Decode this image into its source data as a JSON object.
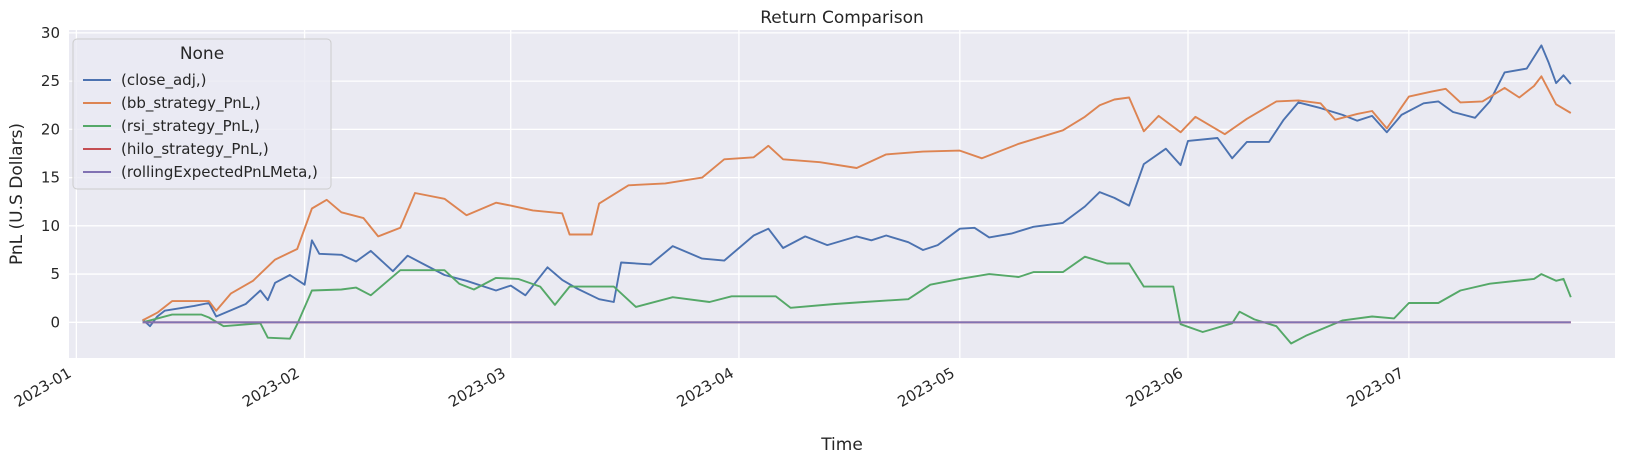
{
  "chart_data": {
    "type": "line",
    "title": "Return Comparison",
    "xlabel": "Time",
    "ylabel": "PnL (U.S Dollars)",
    "xlim": [
      "2022-12-31",
      "2023-07-29"
    ],
    "ylim": [
      -3.7,
      30.3
    ],
    "x_ticks": [
      "2023-01",
      "2023-02",
      "2023-03",
      "2023-04",
      "2023-05",
      "2023-06",
      "2023-07"
    ],
    "y_ticks": [
      0,
      5,
      10,
      15,
      20,
      25,
      30
    ],
    "grid": true,
    "legend": {
      "title": "None",
      "placement": "upper-left"
    },
    "series": [
      {
        "name": "(close_adj,)",
        "color": "#4c72b0",
        "points": [
          [
            "2023-01-10",
            0.3
          ],
          [
            "2023-01-11",
            -0.4
          ],
          [
            "2023-01-12",
            0.6
          ],
          [
            "2023-01-13",
            1.2
          ],
          [
            "2023-01-17",
            1.7
          ],
          [
            "2023-01-19",
            2.0
          ],
          [
            "2023-01-20",
            0.6
          ],
          [
            "2023-01-24",
            1.9
          ],
          [
            "2023-01-26",
            3.3
          ],
          [
            "2023-01-27",
            2.3
          ],
          [
            "2023-01-28",
            4.1
          ],
          [
            "2023-01-30",
            4.9
          ],
          [
            "2023-02-01",
            3.9
          ],
          [
            "2023-02-02",
            8.5
          ],
          [
            "2023-02-03",
            7.1
          ],
          [
            "2023-02-06",
            7.0
          ],
          [
            "2023-02-08",
            6.3
          ],
          [
            "2023-02-10",
            7.4
          ],
          [
            "2023-02-13",
            5.3
          ],
          [
            "2023-02-15",
            6.9
          ],
          [
            "2023-02-17",
            6.1
          ],
          [
            "2023-02-20",
            4.9
          ],
          [
            "2023-02-23",
            4.3
          ],
          [
            "2023-02-27",
            3.3
          ],
          [
            "2023-03-01",
            3.8
          ],
          [
            "2023-03-03",
            2.8
          ],
          [
            "2023-03-06",
            5.7
          ],
          [
            "2023-03-08",
            4.4
          ],
          [
            "2023-03-10",
            3.5
          ],
          [
            "2023-03-13",
            2.4
          ],
          [
            "2023-03-15",
            2.1
          ],
          [
            "2023-03-16",
            6.2
          ],
          [
            "2023-03-20",
            6.0
          ],
          [
            "2023-03-23",
            7.9
          ],
          [
            "2023-03-27",
            6.6
          ],
          [
            "2023-03-30",
            6.4
          ],
          [
            "2023-04-03",
            9.0
          ],
          [
            "2023-04-05",
            9.7
          ],
          [
            "2023-04-07",
            7.7
          ],
          [
            "2023-04-10",
            8.9
          ],
          [
            "2023-04-13",
            8.0
          ],
          [
            "2023-04-17",
            8.9
          ],
          [
            "2023-04-19",
            8.5
          ],
          [
            "2023-04-21",
            9.0
          ],
          [
            "2023-04-24",
            8.3
          ],
          [
            "2023-04-26",
            7.5
          ],
          [
            "2023-04-28",
            8.0
          ],
          [
            "2023-05-01",
            9.7
          ],
          [
            "2023-05-03",
            9.8
          ],
          [
            "2023-05-05",
            8.8
          ],
          [
            "2023-05-08",
            9.2
          ],
          [
            "2023-05-11",
            9.9
          ],
          [
            "2023-05-15",
            10.3
          ],
          [
            "2023-05-18",
            12.0
          ],
          [
            "2023-05-20",
            13.5
          ],
          [
            "2023-05-22",
            12.9
          ],
          [
            "2023-05-24",
            12.1
          ],
          [
            "2023-05-26",
            16.4
          ],
          [
            "2023-05-29",
            18.0
          ],
          [
            "2023-05-31",
            16.3
          ],
          [
            "2023-06-01",
            18.8
          ],
          [
            "2023-06-05",
            19.1
          ],
          [
            "2023-06-07",
            17.0
          ],
          [
            "2023-06-09",
            18.7
          ],
          [
            "2023-06-12",
            18.7
          ],
          [
            "2023-06-14",
            21.0
          ],
          [
            "2023-06-16",
            22.8
          ],
          [
            "2023-06-19",
            22.2
          ],
          [
            "2023-06-22",
            21.5
          ],
          [
            "2023-06-24",
            20.9
          ],
          [
            "2023-06-26",
            21.4
          ],
          [
            "2023-06-28",
            19.7
          ],
          [
            "2023-06-30",
            21.5
          ],
          [
            "2023-07-03",
            22.7
          ],
          [
            "2023-07-05",
            22.9
          ],
          [
            "2023-07-07",
            21.8
          ],
          [
            "2023-07-10",
            21.2
          ],
          [
            "2023-07-12",
            22.9
          ],
          [
            "2023-07-14",
            25.9
          ],
          [
            "2023-07-17",
            26.3
          ],
          [
            "2023-07-19",
            28.7
          ],
          [
            "2023-07-20",
            26.9
          ],
          [
            "2023-07-21",
            24.8
          ],
          [
            "2023-07-22",
            25.6
          ],
          [
            "2023-07-23",
            24.7
          ]
        ]
      },
      {
        "name": "(bb_strategy_PnL,)",
        "color": "#dd8452",
        "points": [
          [
            "2023-01-10",
            0.2
          ],
          [
            "2023-01-12",
            1.0
          ],
          [
            "2023-01-14",
            2.2
          ],
          [
            "2023-01-19",
            2.2
          ],
          [
            "2023-01-20",
            1.2
          ],
          [
            "2023-01-22",
            3.0
          ],
          [
            "2023-01-25",
            4.3
          ],
          [
            "2023-01-28",
            6.5
          ],
          [
            "2023-01-31",
            7.6
          ],
          [
            "2023-02-02",
            11.8
          ],
          [
            "2023-02-04",
            12.7
          ],
          [
            "2023-02-06",
            11.4
          ],
          [
            "2023-02-09",
            10.8
          ],
          [
            "2023-02-11",
            8.9
          ],
          [
            "2023-02-14",
            9.8
          ],
          [
            "2023-02-16",
            13.4
          ],
          [
            "2023-02-20",
            12.8
          ],
          [
            "2023-02-23",
            11.1
          ],
          [
            "2023-02-27",
            12.4
          ],
          [
            "2023-03-01",
            12.1
          ],
          [
            "2023-03-04",
            11.6
          ],
          [
            "2023-03-08",
            11.3
          ],
          [
            "2023-03-09",
            9.1
          ],
          [
            "2023-03-12",
            9.1
          ],
          [
            "2023-03-13",
            12.3
          ],
          [
            "2023-03-17",
            14.2
          ],
          [
            "2023-03-22",
            14.4
          ],
          [
            "2023-03-27",
            15.0
          ],
          [
            "2023-03-30",
            16.9
          ],
          [
            "2023-04-03",
            17.1
          ],
          [
            "2023-04-05",
            18.3
          ],
          [
            "2023-04-07",
            16.9
          ],
          [
            "2023-04-12",
            16.6
          ],
          [
            "2023-04-17",
            16.0
          ],
          [
            "2023-04-21",
            17.4
          ],
          [
            "2023-04-26",
            17.7
          ],
          [
            "2023-05-01",
            17.8
          ],
          [
            "2023-05-04",
            17.0
          ],
          [
            "2023-05-09",
            18.5
          ],
          [
            "2023-05-15",
            19.9
          ],
          [
            "2023-05-18",
            21.3
          ],
          [
            "2023-05-20",
            22.5
          ],
          [
            "2023-05-22",
            23.1
          ],
          [
            "2023-05-24",
            23.3
          ],
          [
            "2023-05-26",
            19.8
          ],
          [
            "2023-05-28",
            21.4
          ],
          [
            "2023-05-31",
            19.7
          ],
          [
            "2023-06-02",
            21.3
          ],
          [
            "2023-06-06",
            19.5
          ],
          [
            "2023-06-09",
            21.1
          ],
          [
            "2023-06-13",
            22.9
          ],
          [
            "2023-06-16",
            23.0
          ],
          [
            "2023-06-19",
            22.7
          ],
          [
            "2023-06-21",
            21.0
          ],
          [
            "2023-06-24",
            21.6
          ],
          [
            "2023-06-26",
            21.9
          ],
          [
            "2023-06-28",
            20.1
          ],
          [
            "2023-07-01",
            23.4
          ],
          [
            "2023-07-04",
            23.9
          ],
          [
            "2023-07-06",
            24.2
          ],
          [
            "2023-07-08",
            22.8
          ],
          [
            "2023-07-11",
            22.9
          ],
          [
            "2023-07-14",
            24.3
          ],
          [
            "2023-07-16",
            23.3
          ],
          [
            "2023-07-18",
            24.5
          ],
          [
            "2023-07-19",
            25.5
          ],
          [
            "2023-07-21",
            22.6
          ],
          [
            "2023-07-23",
            21.7
          ]
        ]
      },
      {
        "name": "(rsi_strategy_PnL,)",
        "color": "#55a868",
        "points": [
          [
            "2023-01-10",
            0.0
          ],
          [
            "2023-01-11",
            0.2
          ],
          [
            "2023-01-14",
            0.8
          ],
          [
            "2023-01-18",
            0.8
          ],
          [
            "2023-01-19",
            0.5
          ],
          [
            "2023-01-21",
            -0.4
          ],
          [
            "2023-01-26",
            -0.1
          ],
          [
            "2023-01-27",
            -1.6
          ],
          [
            "2023-01-30",
            -1.7
          ],
          [
            "2023-01-31",
            -0.2
          ],
          [
            "2023-02-02",
            3.3
          ],
          [
            "2023-02-06",
            3.4
          ],
          [
            "2023-02-08",
            3.6
          ],
          [
            "2023-02-10",
            2.8
          ],
          [
            "2023-02-14",
            5.4
          ],
          [
            "2023-02-20",
            5.4
          ],
          [
            "2023-02-22",
            4.0
          ],
          [
            "2023-02-24",
            3.4
          ],
          [
            "2023-02-27",
            4.6
          ],
          [
            "2023-03-02",
            4.5
          ],
          [
            "2023-03-05",
            3.7
          ],
          [
            "2023-03-07",
            1.8
          ],
          [
            "2023-03-09",
            3.7
          ],
          [
            "2023-03-15",
            3.7
          ],
          [
            "2023-03-18",
            1.6
          ],
          [
            "2023-03-23",
            2.6
          ],
          [
            "2023-03-28",
            2.1
          ],
          [
            "2023-03-31",
            2.7
          ],
          [
            "2023-04-06",
            2.7
          ],
          [
            "2023-04-08",
            1.5
          ],
          [
            "2023-04-14",
            1.9
          ],
          [
            "2023-04-18",
            2.1
          ],
          [
            "2023-04-24",
            2.4
          ],
          [
            "2023-04-27",
            3.9
          ],
          [
            "2023-05-01",
            4.5
          ],
          [
            "2023-05-05",
            5.0
          ],
          [
            "2023-05-09",
            4.7
          ],
          [
            "2023-05-11",
            5.2
          ],
          [
            "2023-05-15",
            5.2
          ],
          [
            "2023-05-18",
            6.8
          ],
          [
            "2023-05-21",
            6.1
          ],
          [
            "2023-05-24",
            6.1
          ],
          [
            "2023-05-26",
            3.7
          ],
          [
            "2023-05-30",
            3.7
          ],
          [
            "2023-05-31",
            -0.2
          ],
          [
            "2023-06-03",
            -1.0
          ],
          [
            "2023-06-07",
            -0.1
          ],
          [
            "2023-06-08",
            1.1
          ],
          [
            "2023-06-10",
            0.3
          ],
          [
            "2023-06-13",
            -0.4
          ],
          [
            "2023-06-15",
            -2.2
          ],
          [
            "2023-06-17",
            -1.4
          ],
          [
            "2023-06-22",
            0.2
          ],
          [
            "2023-06-26",
            0.6
          ],
          [
            "2023-06-29",
            0.4
          ],
          [
            "2023-07-01",
            2.0
          ],
          [
            "2023-07-05",
            2.0
          ],
          [
            "2023-07-08",
            3.3
          ],
          [
            "2023-07-12",
            4.0
          ],
          [
            "2023-07-18",
            4.5
          ],
          [
            "2023-07-19",
            5.0
          ],
          [
            "2023-07-21",
            4.3
          ],
          [
            "2023-07-22",
            4.5
          ],
          [
            "2023-07-23",
            2.6
          ]
        ]
      },
      {
        "name": "(hilo_strategy_PnL,)",
        "color": "#c44e52",
        "points": [
          [
            "2023-01-10",
            0.0
          ],
          [
            "2023-07-23",
            0.0
          ]
        ]
      },
      {
        "name": "(rollingExpectedPnLMeta,)",
        "color": "#8172b3",
        "points": [
          [
            "2023-01-10",
            0.0
          ],
          [
            "2023-07-23",
            0.0
          ]
        ]
      }
    ]
  }
}
